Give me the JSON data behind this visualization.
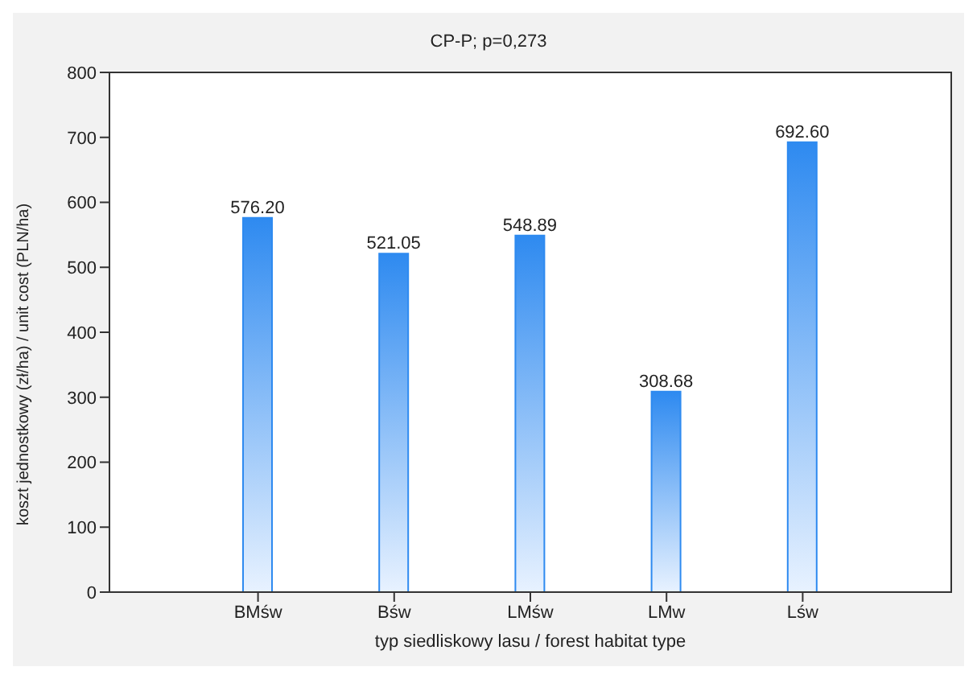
{
  "chart_data": {
    "type": "bar",
    "title": "CP-P; p=0,273",
    "xlabel": "typ siedliskowy lasu / forest habitat type",
    "ylabel": "koszt jednostkowy (zł/ha) / unit cost (PLN/ha)",
    "categories": [
      "BMśw",
      "Bśw",
      "LMśw",
      "LMw",
      "Lśw"
    ],
    "values": [
      576.2,
      521.05,
      548.89,
      308.68,
      692.6
    ],
    "value_labels": [
      "576.20",
      "521.05",
      "548.89",
      "308.68",
      "692.60"
    ],
    "color": "#2e8af0",
    "ylim": [
      0,
      800
    ],
    "yticks": [
      0,
      100,
      200,
      300,
      400,
      500,
      600,
      700,
      800
    ]
  }
}
